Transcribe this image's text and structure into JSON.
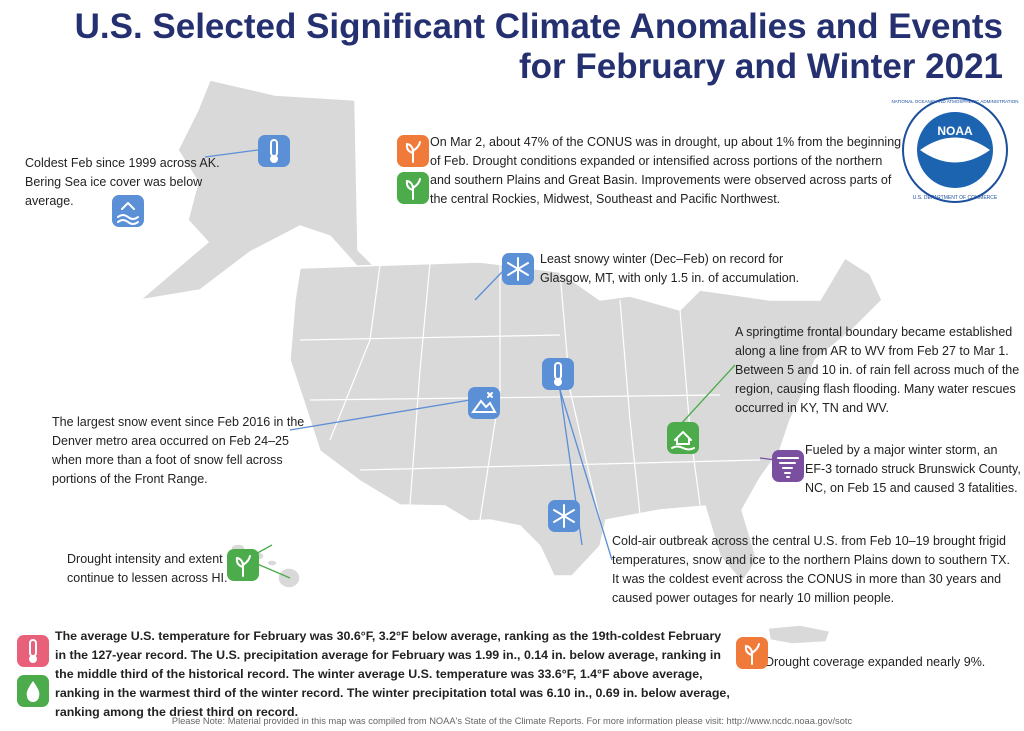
{
  "title": {
    "lines": [
      "U.S. Selected Significant Climate Anomalies and Events",
      "for February and Winter 2021"
    ]
  },
  "logo": {
    "name": "NOAA",
    "agency": "NATIONAL OCEANIC AND ATMOSPHERIC ADMINISTRATION",
    "department": "U.S. DEPARTMENT OF COMMERCE"
  },
  "annotations": [
    {
      "lines": [
        "Coldest Feb since 1999 across AK.",
        "Bering Sea ice cover was below",
        "average."
      ]
    },
    {
      "lines": [
        "On Mar 2, about 47% of the CONUS was in drought, up about 1% from the beginning",
        "of Feb. Drought conditions expanded or intensified across portions of the northern",
        "and southern Plains and Great Basin. Improvements were observed across parts of",
        "the central Rockies, Midwest, Southeast and Pacific Northwest."
      ]
    },
    {
      "lines": [
        "Least snowy winter (Dec–Feb) on record for",
        "Glasgow, MT, with only 1.5 in. of accumulation."
      ]
    },
    {
      "lines": [
        "A springtime frontal boundary became established",
        "along a line from AR to WV from Feb 27 to Mar 1.",
        "Between 5 and 10 in. of rain fell across much of the",
        "region, causing flash flooding. Many water rescues",
        "occurred in KY, TN and WV."
      ]
    },
    {
      "lines": [
        "The largest snow event since Feb 2016 in the",
        "Denver metro area occurred on Feb 24–25",
        "when more than a foot of snow fell across",
        "portions of the Front Range."
      ]
    },
    {
      "lines": [
        "Fueled by a major winter storm, an",
        "EF-3 tornado struck Brunswick County,",
        "NC, on Feb 15 and caused 3 fatalities."
      ]
    },
    {
      "lines": [
        "Cold-air outbreak across the central U.S. from Feb 10–19 brought frigid",
        "temperatures, snow and ice to the northern Plains down to southern TX.",
        "It was the coldest event across the CONUS in more than 30 years and",
        "caused power outages for nearly 10 million people."
      ]
    },
    {
      "lines": [
        "Drought intensity and extent",
        "continue to lessen across HI."
      ]
    },
    {
      "lines": [
        "Drought coverage expanded nearly 9%."
      ]
    }
  ],
  "summary": {
    "lines": [
      "The average U.S. temperature for February was 30.6°F, 3.2°F below average, ranking as the 19th-coldest February",
      "in the 127-year record. The U.S. precipitation average for February was 1.99 in., 0.14 in. below average, ranking in",
      "the middle third of the historical record. The winter average U.S. temperature was 33.6°F, 1.4°F above average,",
      "ranking in the warmest third of the winter record. The winter precipitation total was 6.10 in., 0.69 in. below average,",
      "ranking among the driest third on record."
    ]
  },
  "footnote": "Please Note: Material provided in this map was compiled from NOAA's State of the Climate Reports. For more information please visit: http://www.ncdc.noaa.gov/sotc"
}
